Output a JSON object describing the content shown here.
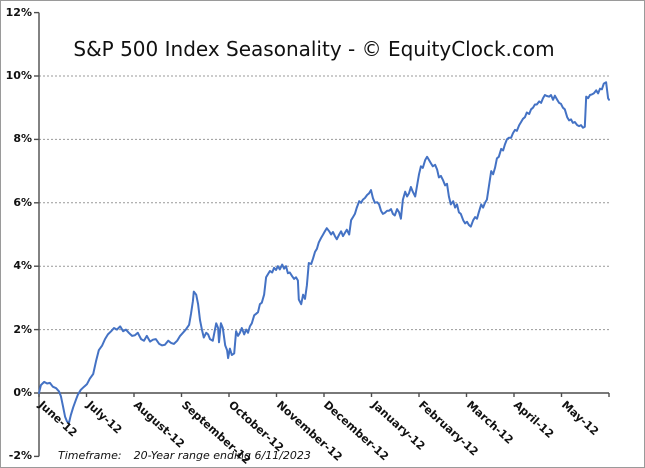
{
  "title": "S&P 500 Index Seasonality - © EquityClock.com",
  "footer": {
    "label": "Timeframe:",
    "value": "20-Year range ending 6/11/2023"
  },
  "colors": {
    "line": "#4472C4",
    "grid": "#999999",
    "axis": "#4d4d4d",
    "text": "#111111"
  },
  "chart_data": {
    "type": "line",
    "title": "S&P 500 Index Seasonality - © EquityClock.com",
    "x_axis": {
      "categories": [
        "June-12",
        "July-12",
        "August-12",
        "September-12",
        "October-12",
        "November-12",
        "December-12",
        "January-12",
        "February-12",
        "March-12",
        "April-12",
        "May-12"
      ],
      "unit": "month (June = 0)",
      "range": [
        0,
        12
      ]
    },
    "y_axis": {
      "tick_labels": [
        "12%",
        "10%",
        "8%",
        "6%",
        "4%",
        "2%",
        "0%",
        "-2%"
      ],
      "min": -2,
      "max": 12,
      "tick_step": 2,
      "unit": "%"
    },
    "grid": "dashed horizontal gridlines at 2% steps, category axis crosses at 0%",
    "legend": "none",
    "points": [
      [
        0.0,
        0.0
      ],
      [
        0.04,
        0.25
      ],
      [
        0.11,
        0.35
      ],
      [
        0.17,
        0.3
      ],
      [
        0.23,
        0.32
      ],
      [
        0.29,
        0.2
      ],
      [
        0.36,
        0.15
      ],
      [
        0.42,
        0.05
      ],
      [
        0.46,
        -0.1
      ],
      [
        0.51,
        -0.45
      ],
      [
        0.55,
        -0.75
      ],
      [
        0.59,
        -0.9
      ],
      [
        0.63,
        -0.95
      ],
      [
        0.67,
        -0.7
      ],
      [
        0.72,
        -0.45
      ],
      [
        0.78,
        -0.2
      ],
      [
        0.82,
        -0.05
      ],
      [
        0.88,
        0.1
      ],
      [
        0.95,
        0.2
      ],
      [
        1.01,
        0.28
      ],
      [
        1.07,
        0.45
      ],
      [
        1.14,
        0.6
      ],
      [
        1.2,
        1.0
      ],
      [
        1.26,
        1.35
      ],
      [
        1.33,
        1.5
      ],
      [
        1.39,
        1.7
      ],
      [
        1.45,
        1.85
      ],
      [
        1.52,
        1.95
      ],
      [
        1.58,
        2.05
      ],
      [
        1.64,
        2.0
      ],
      [
        1.71,
        2.1
      ],
      [
        1.77,
        1.95
      ],
      [
        1.83,
        2.0
      ],
      [
        1.89,
        1.9
      ],
      [
        1.96,
        1.8
      ],
      [
        2.02,
        1.82
      ],
      [
        2.08,
        1.9
      ],
      [
        2.15,
        1.7
      ],
      [
        2.21,
        1.65
      ],
      [
        2.27,
        1.8
      ],
      [
        2.34,
        1.62
      ],
      [
        2.4,
        1.68
      ],
      [
        2.46,
        1.7
      ],
      [
        2.53,
        1.55
      ],
      [
        2.59,
        1.5
      ],
      [
        2.65,
        1.52
      ],
      [
        2.72,
        1.65
      ],
      [
        2.78,
        1.58
      ],
      [
        2.84,
        1.55
      ],
      [
        2.91,
        1.65
      ],
      [
        2.97,
        1.8
      ],
      [
        3.03,
        1.9
      ],
      [
        3.09,
        2.0
      ],
      [
        3.16,
        2.15
      ],
      [
        3.2,
        2.5
      ],
      [
        3.24,
        2.9
      ],
      [
        3.26,
        3.2
      ],
      [
        3.31,
        3.1
      ],
      [
        3.35,
        2.8
      ],
      [
        3.39,
        2.3
      ],
      [
        3.43,
        2.0
      ],
      [
        3.47,
        1.75
      ],
      [
        3.52,
        1.9
      ],
      [
        3.56,
        1.85
      ],
      [
        3.6,
        1.7
      ],
      [
        3.66,
        1.65
      ],
      [
        3.73,
        2.2
      ],
      [
        3.77,
        2.05
      ],
      [
        3.79,
        1.6
      ],
      [
        3.83,
        2.2
      ],
      [
        3.87,
        2.05
      ],
      [
        3.92,
        1.5
      ],
      [
        3.96,
        1.35
      ],
      [
        3.98,
        1.1
      ],
      [
        4.02,
        1.4
      ],
      [
        4.06,
        1.2
      ],
      [
        4.11,
        1.25
      ],
      [
        4.15,
        1.95
      ],
      [
        4.19,
        1.8
      ],
      [
        4.23,
        1.9
      ],
      [
        4.27,
        2.05
      ],
      [
        4.32,
        1.85
      ],
      [
        4.36,
        2.0
      ],
      [
        4.4,
        1.9
      ],
      [
        4.44,
        2.1
      ],
      [
        4.48,
        2.2
      ],
      [
        4.53,
        2.45
      ],
      [
        4.57,
        2.5
      ],
      [
        4.61,
        2.55
      ],
      [
        4.65,
        2.8
      ],
      [
        4.69,
        2.85
      ],
      [
        4.74,
        3.1
      ],
      [
        4.78,
        3.65
      ],
      [
        4.82,
        3.75
      ],
      [
        4.86,
        3.85
      ],
      [
        4.91,
        3.8
      ],
      [
        4.95,
        3.95
      ],
      [
        4.99,
        3.88
      ],
      [
        5.03,
        4.0
      ],
      [
        5.07,
        3.9
      ],
      [
        5.12,
        4.05
      ],
      [
        5.16,
        3.92
      ],
      [
        5.2,
        4.0
      ],
      [
        5.24,
        3.78
      ],
      [
        5.28,
        3.8
      ],
      [
        5.33,
        3.68
      ],
      [
        5.37,
        3.6
      ],
      [
        5.41,
        3.65
      ],
      [
        5.45,
        3.55
      ],
      [
        5.47,
        2.95
      ],
      [
        5.52,
        2.8
      ],
      [
        5.56,
        3.1
      ],
      [
        5.6,
        2.97
      ],
      [
        5.64,
        3.4
      ],
      [
        5.68,
        4.1
      ],
      [
        5.73,
        4.07
      ],
      [
        5.77,
        4.25
      ],
      [
        5.81,
        4.45
      ],
      [
        5.85,
        4.55
      ],
      [
        5.89,
        4.75
      ],
      [
        5.94,
        4.9
      ],
      [
        5.98,
        5.0
      ],
      [
        6.02,
        5.1
      ],
      [
        6.06,
        5.2
      ],
      [
        6.11,
        5.1
      ],
      [
        6.15,
        5.0
      ],
      [
        6.19,
        5.08
      ],
      [
        6.23,
        4.95
      ],
      [
        6.27,
        4.85
      ],
      [
        6.32,
        5.0
      ],
      [
        6.36,
        5.1
      ],
      [
        6.4,
        4.95
      ],
      [
        6.44,
        5.05
      ],
      [
        6.48,
        5.15
      ],
      [
        6.53,
        5.0
      ],
      [
        6.57,
        5.45
      ],
      [
        6.61,
        5.55
      ],
      [
        6.65,
        5.65
      ],
      [
        6.69,
        5.85
      ],
      [
        6.74,
        6.05
      ],
      [
        6.78,
        6.0
      ],
      [
        6.82,
        6.1
      ],
      [
        6.86,
        6.15
      ],
      [
        6.91,
        6.25
      ],
      [
        6.95,
        6.3
      ],
      [
        6.99,
        6.4
      ],
      [
        7.03,
        6.15
      ],
      [
        7.07,
        6.0
      ],
      [
        7.12,
        6.02
      ],
      [
        7.16,
        5.95
      ],
      [
        7.2,
        5.75
      ],
      [
        7.24,
        5.65
      ],
      [
        7.28,
        5.68
      ],
      [
        7.33,
        5.75
      ],
      [
        7.37,
        5.75
      ],
      [
        7.41,
        5.8
      ],
      [
        7.45,
        5.65
      ],
      [
        7.49,
        5.6
      ],
      [
        7.54,
        5.8
      ],
      [
        7.58,
        5.7
      ],
      [
        7.62,
        5.5
      ],
      [
        7.66,
        6.1
      ],
      [
        7.71,
        6.35
      ],
      [
        7.75,
        6.2
      ],
      [
        7.79,
        6.3
      ],
      [
        7.83,
        6.5
      ],
      [
        7.87,
        6.35
      ],
      [
        7.92,
        6.2
      ],
      [
        7.96,
        6.55
      ],
      [
        8.0,
        6.9
      ],
      [
        8.04,
        7.15
      ],
      [
        8.08,
        7.1
      ],
      [
        8.13,
        7.35
      ],
      [
        8.17,
        7.45
      ],
      [
        8.21,
        7.35
      ],
      [
        8.25,
        7.25
      ],
      [
        8.29,
        7.15
      ],
      [
        8.34,
        7.2
      ],
      [
        8.38,
        7.05
      ],
      [
        8.42,
        6.8
      ],
      [
        8.46,
        6.85
      ],
      [
        8.51,
        6.7
      ],
      [
        8.55,
        6.55
      ],
      [
        8.59,
        6.6
      ],
      [
        8.63,
        6.2
      ],
      [
        8.67,
        5.95
      ],
      [
        8.72,
        6.05
      ],
      [
        8.76,
        5.85
      ],
      [
        8.8,
        5.95
      ],
      [
        8.84,
        5.7
      ],
      [
        8.88,
        5.65
      ],
      [
        8.93,
        5.45
      ],
      [
        8.97,
        5.35
      ],
      [
        9.01,
        5.4
      ],
      [
        9.05,
        5.3
      ],
      [
        9.09,
        5.25
      ],
      [
        9.14,
        5.45
      ],
      [
        9.18,
        5.55
      ],
      [
        9.22,
        5.5
      ],
      [
        9.26,
        5.7
      ],
      [
        9.31,
        5.95
      ],
      [
        9.35,
        5.85
      ],
      [
        9.39,
        6.0
      ],
      [
        9.43,
        6.1
      ],
      [
        9.47,
        6.5
      ],
      [
        9.52,
        7.0
      ],
      [
        9.56,
        6.9
      ],
      [
        9.6,
        7.1
      ],
      [
        9.64,
        7.4
      ],
      [
        9.68,
        7.45
      ],
      [
        9.73,
        7.7
      ],
      [
        9.77,
        7.65
      ],
      [
        9.81,
        7.85
      ],
      [
        9.85,
        8.0
      ],
      [
        9.89,
        8.05
      ],
      [
        9.94,
        8.05
      ],
      [
        9.98,
        8.2
      ],
      [
        10.02,
        8.3
      ],
      [
        10.06,
        8.27
      ],
      [
        10.11,
        8.45
      ],
      [
        10.15,
        8.55
      ],
      [
        10.19,
        8.65
      ],
      [
        10.23,
        8.7
      ],
      [
        10.27,
        8.85
      ],
      [
        10.32,
        8.8
      ],
      [
        10.36,
        8.95
      ],
      [
        10.4,
        9.0
      ],
      [
        10.44,
        9.1
      ],
      [
        10.48,
        9.1
      ],
      [
        10.53,
        9.2
      ],
      [
        10.57,
        9.15
      ],
      [
        10.61,
        9.3
      ],
      [
        10.65,
        9.4
      ],
      [
        10.69,
        9.37
      ],
      [
        10.74,
        9.35
      ],
      [
        10.78,
        9.4
      ],
      [
        10.82,
        9.25
      ],
      [
        10.86,
        9.38
      ],
      [
        10.91,
        9.25
      ],
      [
        10.95,
        9.15
      ],
      [
        10.99,
        9.12
      ],
      [
        11.03,
        9.0
      ],
      [
        11.07,
        8.95
      ],
      [
        11.12,
        8.7
      ],
      [
        11.16,
        8.6
      ],
      [
        11.2,
        8.63
      ],
      [
        11.24,
        8.52
      ],
      [
        11.28,
        8.55
      ],
      [
        11.33,
        8.45
      ],
      [
        11.37,
        8.42
      ],
      [
        11.41,
        8.45
      ],
      [
        11.45,
        8.37
      ],
      [
        11.49,
        8.4
      ],
      [
        11.52,
        9.35
      ],
      [
        11.56,
        9.3
      ],
      [
        11.6,
        9.4
      ],
      [
        11.64,
        9.42
      ],
      [
        11.68,
        9.45
      ],
      [
        11.73,
        9.55
      ],
      [
        11.77,
        9.45
      ],
      [
        11.81,
        9.6
      ],
      [
        11.85,
        9.58
      ],
      [
        11.89,
        9.76
      ],
      [
        11.94,
        9.8
      ],
      [
        11.96,
        9.55
      ],
      [
        11.98,
        9.3
      ],
      [
        12.0,
        9.25
      ]
    ]
  }
}
